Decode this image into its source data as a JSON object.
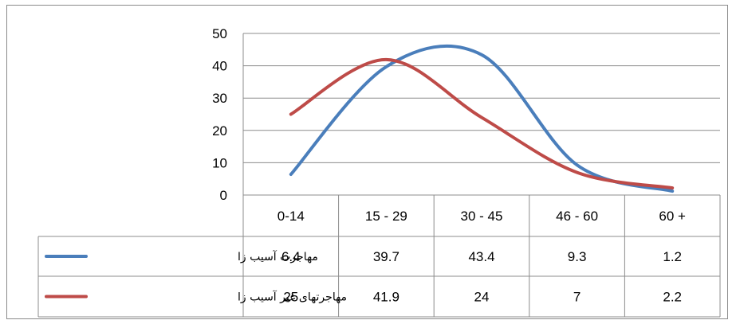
{
  "chart_data": {
    "type": "line",
    "categories": [
      "0-14",
      "15 - 29",
      "30 - 45",
      "46 - 60",
      "60 +"
    ],
    "series": [
      {
        "name": "مهاجرت آسیب زا",
        "color": "#4a7ebb",
        "values": [
          6.4,
          39.7,
          43.4,
          9.3,
          1.2
        ]
      },
      {
        "name": "مهاجرتهای غیر آسیب زا",
        "color": "#be4b48",
        "values": [
          25,
          41.9,
          24,
          7,
          2.2
        ]
      }
    ],
    "ylim": [
      0,
      50
    ],
    "yticks": [
      "0",
      "10",
      "20",
      "30",
      "40",
      "50"
    ],
    "grid": true,
    "legend": "data-table",
    "title": "",
    "xlabel": "",
    "ylabel": ""
  }
}
